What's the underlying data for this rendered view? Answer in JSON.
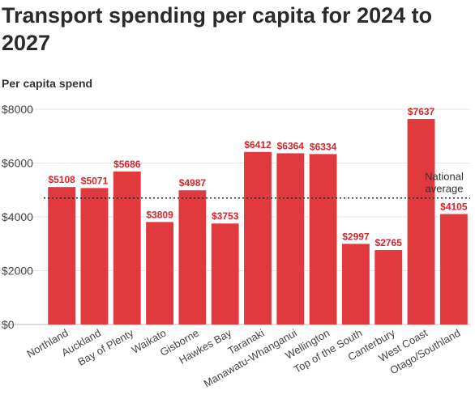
{
  "chart_data": {
    "type": "bar",
    "title": "Transport spending per capita for 2024 to 2027",
    "subtitle": "Per capita spend",
    "xlabel": "",
    "ylabel": "",
    "categories": [
      "Northland",
      "Auckland",
      "Bay of Plenty",
      "Waikato",
      "Gisborne",
      "Hawkes Bay",
      "Taranaki",
      "Manawatu-Whanganui",
      "Wellington",
      "Top of the South",
      "Canterbury",
      "West Coast",
      "Otago/Southland"
    ],
    "values": [
      5108,
      5071,
      5686,
      3809,
      4987,
      3753,
      6412,
      6364,
      6334,
      2997,
      2765,
      7637,
      4105
    ],
    "data_labels": [
      "$5108",
      "$5071",
      "$5686",
      "$3809",
      "$4987",
      "$3753",
      "$6412",
      "$6364",
      "$6334",
      "$2997",
      "$2765",
      "$7637",
      "$4105"
    ],
    "ylim": [
      0,
      8000
    ],
    "yticks": [
      0,
      2000,
      4000,
      6000,
      8000
    ],
    "ytick_labels": [
      "$0",
      "$2000",
      "$4000",
      "$6000",
      "$8000"
    ],
    "grid": true,
    "reference_line": {
      "label_line1": "National",
      "label_line2": "average",
      "value": 4700,
      "style": "dotted"
    },
    "colors": {
      "bar": "#e0393e",
      "label": "#d6242b",
      "grid": "#e6e6e6",
      "axis_text": "#444444"
    }
  }
}
